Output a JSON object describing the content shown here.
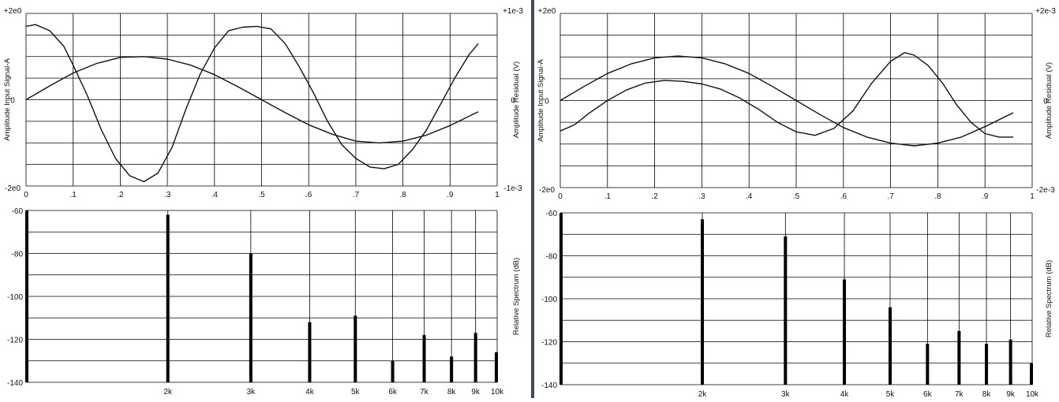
{
  "chart_data": [
    {
      "panel": "left",
      "time_plot": {
        "type": "line",
        "xlim": [
          0,
          1
        ],
        "x_tick_labels": [
          "0",
          ".1",
          ".2",
          ".3",
          ".4",
          ".5",
          ".6",
          ".7",
          ".8",
          ".9",
          "1"
        ],
        "y_left_label": "Amplitude Input Signal-A",
        "y_left_ticks": [
          "+2e0",
          "0",
          "-2e0"
        ],
        "y_right_label": "Amplitude Residual (V)",
        "y_right_ticks": [
          "+1e-3",
          "0",
          "-1e-3"
        ],
        "ylim": [
          -1,
          1
        ],
        "grid": true,
        "series": [
          {
            "x": [
              0.0,
              0.02,
              0.05,
              0.08,
              0.1,
              0.13,
              0.16,
              0.19,
              0.22,
              0.25,
              0.28,
              0.31,
              0.34,
              0.37,
              0.4,
              0.43,
              0.46,
              0.49,
              0.52,
              0.55,
              0.58,
              0.61,
              0.64,
              0.67,
              0.7,
              0.73,
              0.76,
              0.79,
              0.82,
              0.85,
              0.88,
              0.91,
              0.94,
              0.96
            ],
            "y": [
              0.85,
              0.87,
              0.8,
              0.62,
              0.4,
              0.05,
              -0.35,
              -0.68,
              -0.88,
              -0.95,
              -0.85,
              -0.55,
              -0.1,
              0.3,
              0.6,
              0.8,
              0.84,
              0.85,
              0.82,
              0.65,
              0.38,
              0.08,
              -0.25,
              -0.52,
              -0.68,
              -0.78,
              -0.8,
              -0.75,
              -0.58,
              -0.35,
              -0.05,
              0.25,
              0.52,
              0.65
            ]
          },
          {
            "x": [
              0.0,
              0.05,
              0.1,
              0.15,
              0.2,
              0.25,
              0.3,
              0.35,
              0.4,
              0.45,
              0.5,
              0.55,
              0.6,
              0.65,
              0.7,
              0.75,
              0.8,
              0.85,
              0.9,
              0.96
            ],
            "y": [
              0.0,
              0.16,
              0.31,
              0.42,
              0.49,
              0.5,
              0.47,
              0.4,
              0.29,
              0.15,
              0.0,
              -0.15,
              -0.29,
              -0.4,
              -0.48,
              -0.5,
              -0.48,
              -0.41,
              -0.3,
              -0.14
            ]
          }
        ]
      },
      "spectrum_plot": {
        "type": "bar",
        "ylabel": "Relative Spectrum (dB)",
        "ylim": [
          -140,
          -60
        ],
        "y_tick_labels": [
          "-60",
          "-80",
          "-100",
          "-120",
          "-140"
        ],
        "x_scale": "log",
        "xlim_hz": [
          1000,
          10000
        ],
        "x_tick_labels": [
          "2k",
          "3k",
          "4k",
          "5k",
          "6k",
          "7k",
          "8k",
          "9k",
          "10k"
        ],
        "bars": [
          {
            "freq_hz": 1000,
            "db": -60
          },
          {
            "freq_hz": 2000,
            "db": -62
          },
          {
            "freq_hz": 3000,
            "db": -80
          },
          {
            "freq_hz": 4000,
            "db": -112
          },
          {
            "freq_hz": 5000,
            "db": -109
          },
          {
            "freq_hz": 6000,
            "db": -130
          },
          {
            "freq_hz": 7000,
            "db": -118
          },
          {
            "freq_hz": 8000,
            "db": -128
          },
          {
            "freq_hz": 9000,
            "db": -117
          },
          {
            "freq_hz": 10000,
            "db": -126
          }
        ]
      }
    },
    {
      "panel": "right",
      "time_plot": {
        "type": "line",
        "xlim": [
          0,
          1
        ],
        "x_tick_labels": [
          "0",
          ".1",
          ".2",
          ".3",
          ".4",
          ".5",
          ".6",
          ".7",
          ".8",
          ".9",
          "1"
        ],
        "y_left_label": "Amplitude Input Signal-A",
        "y_left_ticks": [
          "+2e0",
          "0",
          "-2e0"
        ],
        "y_right_label": "Amplitude Residual (V)",
        "y_right_ticks": [
          "+2e-3",
          "0",
          "-2e-3"
        ],
        "ylim": [
          -1,
          1
        ],
        "grid": true,
        "series": [
          {
            "x": [
              0.0,
              0.05,
              0.1,
              0.15,
              0.2,
              0.25,
              0.3,
              0.35,
              0.4,
              0.45,
              0.5,
              0.55,
              0.6,
              0.65,
              0.7,
              0.75,
              0.8,
              0.85,
              0.9,
              0.96
            ],
            "y": [
              0.0,
              0.16,
              0.31,
              0.42,
              0.49,
              0.51,
              0.49,
              0.42,
              0.31,
              0.16,
              0.0,
              -0.16,
              -0.31,
              -0.42,
              -0.49,
              -0.52,
              -0.49,
              -0.42,
              -0.3,
              -0.14
            ]
          },
          {
            "x": [
              0.0,
              0.03,
              0.06,
              0.1,
              0.14,
              0.18,
              0.22,
              0.26,
              0.3,
              0.34,
              0.38,
              0.42,
              0.46,
              0.5,
              0.54,
              0.58,
              0.62,
              0.66,
              0.7,
              0.73,
              0.75,
              0.78,
              0.81,
              0.84,
              0.87,
              0.9,
              0.93,
              0.96
            ],
            "y": [
              -0.35,
              -0.28,
              -0.15,
              0.0,
              0.12,
              0.2,
              0.23,
              0.22,
              0.19,
              0.13,
              0.03,
              -0.1,
              -0.25,
              -0.36,
              -0.4,
              -0.32,
              -0.12,
              0.2,
              0.45,
              0.55,
              0.52,
              0.4,
              0.2,
              -0.05,
              -0.25,
              -0.38,
              -0.42,
              -0.42
            ]
          }
        ]
      },
      "spectrum_plot": {
        "type": "bar",
        "ylabel": "Relative Spectrum (dB)",
        "ylim": [
          -140,
          -60
        ],
        "y_tick_labels": [
          "-60",
          "-80",
          "-100",
          "-120",
          "-140"
        ],
        "x_scale": "log",
        "xlim_hz": [
          1000,
          10000
        ],
        "x_tick_labels": [
          "2k",
          "3k",
          "4k",
          "5k",
          "6k",
          "7k",
          "8k",
          "9k",
          "10k"
        ],
        "bars": [
          {
            "freq_hz": 1000,
            "db": -60
          },
          {
            "freq_hz": 2000,
            "db": -63
          },
          {
            "freq_hz": 3000,
            "db": -71
          },
          {
            "freq_hz": 4000,
            "db": -91
          },
          {
            "freq_hz": 5000,
            "db": -104
          },
          {
            "freq_hz": 6000,
            "db": -121
          },
          {
            "freq_hz": 7000,
            "db": -115
          },
          {
            "freq_hz": 8000,
            "db": -121
          },
          {
            "freq_hz": 9000,
            "db": -119
          },
          {
            "freq_hz": 10000,
            "db": -130
          }
        ]
      }
    }
  ]
}
